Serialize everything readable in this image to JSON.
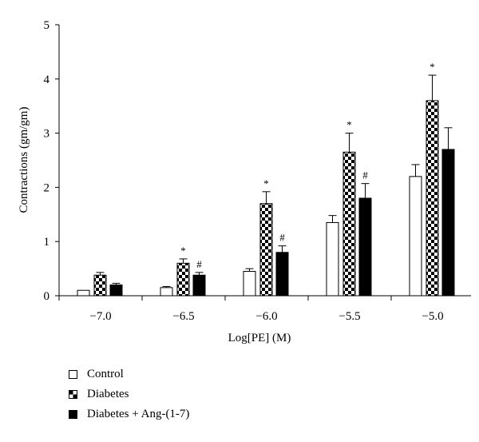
{
  "chart_data": {
    "type": "bar",
    "xlabel": "Log[PE] (M)",
    "ylabel": "Contractions (gm/gm)",
    "ylim": [
      0,
      5
    ],
    "yticks": [
      "0",
      "1",
      "2",
      "3",
      "4",
      "5"
    ],
    "categories": [
      "−7.0",
      "−6.5",
      "−6.0",
      "−5.5",
      "−5.0"
    ],
    "series": [
      {
        "name": "Control",
        "pattern": "open",
        "values": [
          0.1,
          0.15,
          0.45,
          1.35,
          2.2
        ],
        "errors": [
          0.0,
          0.02,
          0.05,
          0.13,
          0.22
        ],
        "annotations": [
          "",
          "",
          "",
          "",
          ""
        ]
      },
      {
        "name": "Diabetes",
        "pattern": "checker",
        "values": [
          0.38,
          0.6,
          1.7,
          2.65,
          3.6
        ],
        "errors": [
          0.05,
          0.08,
          0.22,
          0.35,
          0.47
        ],
        "annotations": [
          "",
          "*",
          "*",
          "*",
          "*"
        ]
      },
      {
        "name": "Diabetes + Ang-(1-7)",
        "pattern": "solid",
        "values": [
          0.2,
          0.38,
          0.8,
          1.8,
          2.7
        ],
        "errors": [
          0.03,
          0.05,
          0.12,
          0.27,
          0.4
        ],
        "annotations": [
          "",
          "#",
          "#",
          "#",
          ""
        ]
      }
    ],
    "legend_position": "bottom-left",
    "colors": {
      "bar_fill_solid": "#000000",
      "bar_outline": "#000000",
      "background": "#ffffff"
    }
  }
}
